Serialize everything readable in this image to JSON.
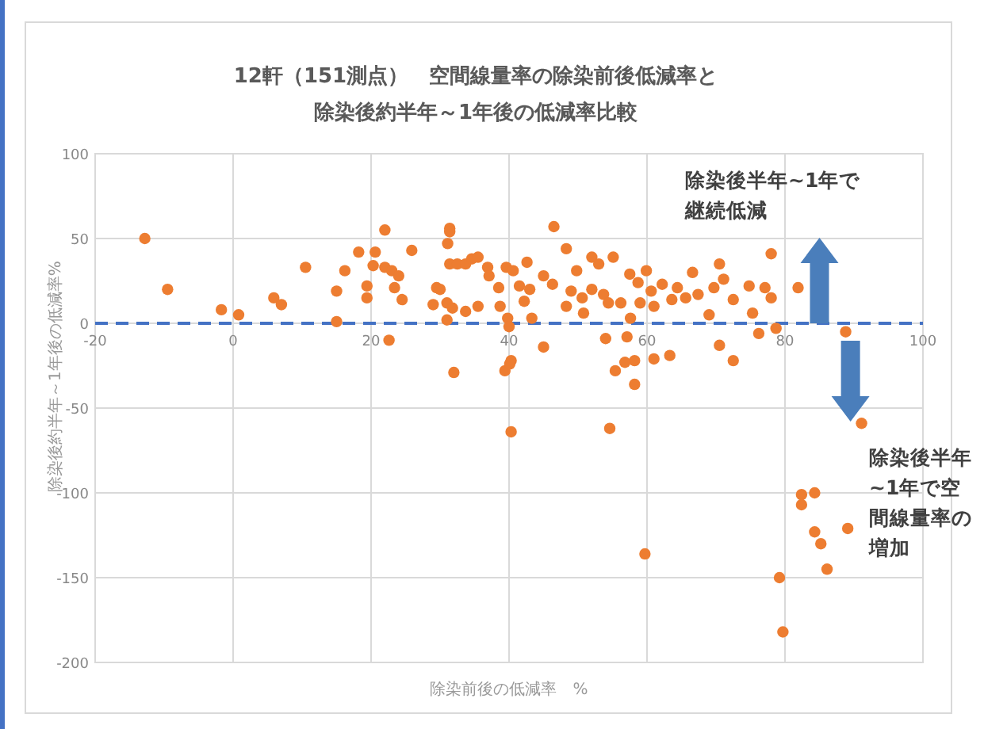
{
  "chart_data": {
    "type": "scatter",
    "title": "12軒（151測点）　空間線量率の除染前後低減率と",
    "subtitle": "除染後約半年～1年後の低減率比較",
    "xlabel": "除染前後の低減率　%",
    "ylabel": "除染後約半年～1年後の低減率%",
    "xlim": [
      -20,
      100
    ],
    "xticks": [
      -20,
      0,
      20,
      40,
      60,
      80,
      100
    ],
    "ylim": [
      -200,
      100
    ],
    "yticks": [
      -200,
      -150,
      -100,
      -50,
      0,
      50,
      100
    ],
    "grid": true,
    "marker": "circle",
    "series": [
      {
        "color": "#ed7d31",
        "x": [
          -12.8,
          -9.5,
          -1.7,
          0.8,
          5.9,
          7,
          10.5,
          15,
          15,
          16.2,
          18.2,
          19.4,
          19.4,
          20.6,
          20.3,
          22,
          22,
          23,
          24,
          23.4,
          24.5,
          22.6,
          25.9,
          29.5,
          30,
          31,
          29,
          31.4,
          31.4,
          31.1,
          31.4,
          32.5,
          31.8,
          31,
          32,
          33.7,
          34.6,
          35.5,
          35.5,
          33.7,
          36.9,
          37.1,
          38.5,
          38.7,
          39.6,
          40.6,
          39.8,
          40,
          41.5,
          42.6,
          42.2,
          43,
          43.3,
          40.3,
          39.4,
          40.1,
          40.3,
          46.5,
          48.3,
          45,
          46.3,
          49.8,
          52,
          53,
          55.1,
          49,
          50.6,
          52,
          53.7,
          54.4,
          56.2,
          50.8,
          48.3,
          45,
          54,
          57.5,
          58.7,
          59.9,
          60.6,
          62.2,
          61,
          59,
          57.6,
          57.1,
          63.6,
          64.4,
          66.6,
          65.6,
          67.4,
          69,
          70.5,
          71.1,
          69.7,
          72.5,
          74.8,
          77.1,
          78,
          75.3,
          76.2,
          78,
          78.7,
          81.9,
          88.8,
          70.5,
          72.5,
          63.3,
          61,
          58.2,
          56.8,
          55.4,
          58.2,
          54.6,
          59.7,
          91.1,
          82.4,
          82.4,
          84.3,
          84.3,
          85.2,
          89.1,
          86.1,
          79.2,
          79.7
        ],
        "values": [
          50,
          20,
          8,
          5,
          15,
          11,
          33,
          19,
          1,
          31,
          42,
          22,
          15,
          42,
          34,
          55,
          33,
          31,
          28,
          21,
          14,
          -10,
          43,
          21,
          20,
          12,
          11,
          56,
          54,
          47,
          35,
          35,
          9,
          2,
          -29,
          35,
          38,
          39,
          10,
          7,
          33,
          28,
          21,
          10,
          33,
          31,
          3,
          -2,
          22,
          36,
          13,
          20,
          3,
          -22,
          -28,
          -24,
          -64,
          57,
          44,
          28,
          23,
          31,
          39,
          35,
          39,
          19,
          15,
          20,
          17,
          12,
          12,
          6,
          10,
          -14,
          -9,
          29,
          24,
          31,
          19,
          23,
          10,
          12,
          3,
          -8,
          14,
          21,
          30,
          15,
          17,
          5,
          35,
          26,
          21,
          14,
          22,
          21,
          15,
          6,
          -6,
          41,
          -3,
          21,
          -5,
          -13,
          -22,
          -19,
          -21,
          -22,
          -23,
          -28,
          -36,
          -62,
          -136,
          -59,
          -101,
          -107,
          -100,
          -123,
          -130,
          -121,
          -145,
          -150,
          -182
        ]
      }
    ],
    "ref_lines": [
      {
        "axis": "y",
        "value": 0,
        "color": "#4472c4",
        "line_style": "dashed"
      }
    ],
    "annotations": [
      "除染後半年~1年で継続低減",
      "除染後半年~1年で空間線量率の増加"
    ]
  }
}
